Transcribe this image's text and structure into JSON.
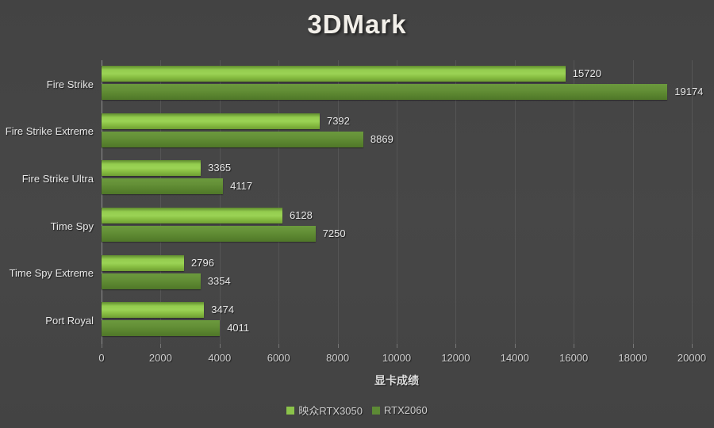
{
  "title": "3DMark",
  "chart_data": {
    "type": "bar",
    "orientation": "horizontal",
    "title": "3DMark",
    "categories": [
      "Fire Strike",
      "Fire Strike Extreme",
      "Fire Strike Ultra",
      "Time Spy",
      "Time Spy Extreme",
      "Port Royal"
    ],
    "series": [
      {
        "name": "映众RTX3050",
        "values": [
          15720,
          7392,
          3365,
          6128,
          2796,
          3474
        ],
        "color": "#8bc34a",
        "gradient": [
          "#5f8a2e",
          "#93cc4e",
          "#9bd355",
          "#85bb40",
          "#6f9e33"
        ]
      },
      {
        "name": "RTX2060",
        "values": [
          19174,
          8869,
          4117,
          7250,
          3354,
          4011
        ],
        "color": "#5d8a35",
        "gradient": [
          "#6b9a3d",
          "#659138",
          "#5a852f",
          "#4f7729"
        ]
      }
    ],
    "xlabel": "显卡成绩",
    "xlim": [
      0,
      20000
    ],
    "xticks": [
      0,
      2000,
      4000,
      6000,
      8000,
      10000,
      12000,
      14000,
      16000,
      18000,
      20000
    ],
    "grid": true,
    "legend_position": "bottom"
  },
  "colors": {
    "background": "#454545",
    "gridline": "#555555",
    "axis_line": "#8f8f8f",
    "bar_label_text": "#e8e8e8",
    "tick_text": "#cfcfcf",
    "title_text": "#f2efe9"
  }
}
